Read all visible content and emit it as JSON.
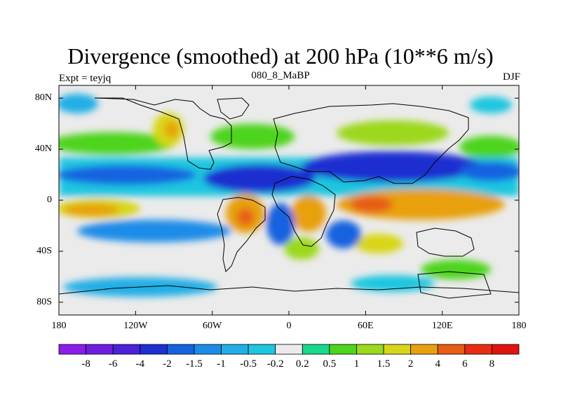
{
  "title": "Divergence (smoothed) at 200 hPa (10**6 m/s)",
  "left_label": "Expt = teyjq",
  "center_label": "080_8_MaBP",
  "right_label": "DJF",
  "lat_ticks": [
    {
      "label": "80N",
      "lat": 80
    },
    {
      "label": "40N",
      "lat": 40
    },
    {
      "label": "0",
      "lat": 0
    },
    {
      "label": "40S",
      "lat": -40
    },
    {
      "label": "80S",
      "lat": -80
    }
  ],
  "lon_ticks": [
    {
      "label": "180",
      "lon": -180
    },
    {
      "label": "120W",
      "lon": -120
    },
    {
      "label": "60W",
      "lon": -60
    },
    {
      "label": "0",
      "lon": 0
    },
    {
      "label": "60E",
      "lon": 60
    },
    {
      "label": "120E",
      "lon": 120
    },
    {
      "label": "180",
      "lon": 180
    }
  ],
  "colorbar": {
    "levels": [
      "-8",
      "-6",
      "-4",
      "-2",
      "-1.5",
      "-1",
      "-0.5",
      "-0.2",
      "0.2",
      "0.5",
      "1",
      "1.5",
      "2",
      "4",
      "6",
      "8"
    ],
    "colors": [
      "#8a1ee8",
      "#6f1ee0",
      "#4a22d8",
      "#1f2fd0",
      "#1462e0",
      "#1a8ce8",
      "#20aee6",
      "#1ec6e0",
      "#ebebeb",
      "#18d88a",
      "#4ed41e",
      "#9cd81c",
      "#d8d618",
      "#e8a010",
      "#e85c14",
      "#e82c14",
      "#e0140e"
    ]
  },
  "colors": {
    "background": "#ebebeb",
    "coast": "#000000",
    "axis": "#000000"
  }
}
